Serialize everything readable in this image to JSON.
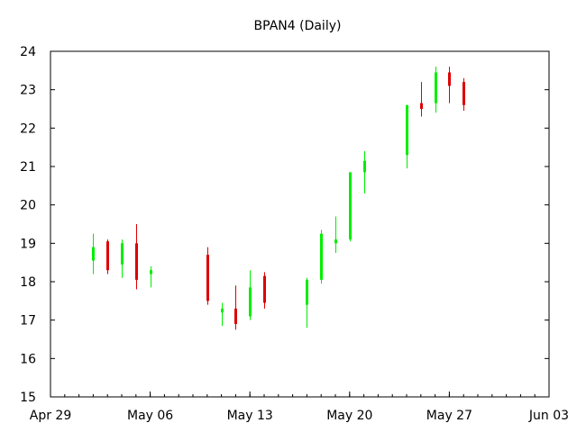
{
  "chart_data": {
    "type": "candlestick",
    "title": "BPAN4 (Daily)",
    "xlabel": "",
    "ylabel": "",
    "x_range": [
      "2019-04-29",
      "2019-06-03"
    ],
    "ylim": [
      15,
      24
    ],
    "y_ticks": [
      15,
      16,
      17,
      18,
      19,
      20,
      21,
      22,
      23,
      24
    ],
    "x_ticks": [
      {
        "date": "2019-04-29",
        "label": "Apr 29"
      },
      {
        "date": "2019-05-06",
        "label": "May 06"
      },
      {
        "date": "2019-05-13",
        "label": "May 13"
      },
      {
        "date": "2019-05-20",
        "label": "May 20"
      },
      {
        "date": "2019-05-27",
        "label": "May 27"
      },
      {
        "date": "2019-06-03",
        "label": "Jun 03"
      }
    ],
    "grid": false,
    "up_color": "#00ee00",
    "down_color": "#dd0000",
    "candles": [
      {
        "date": "2019-05-02",
        "open": 18.55,
        "high": 19.25,
        "low": 18.2,
        "close": 18.9
      },
      {
        "date": "2019-05-03",
        "open": 19.05,
        "high": 19.1,
        "low": 18.2,
        "close": 18.3
      },
      {
        "date": "2019-05-04",
        "open": 18.45,
        "high": 19.1,
        "low": 18.1,
        "close": 19.0
      },
      {
        "date": "2019-05-05",
        "open": 19.0,
        "high": 19.5,
        "low": 17.8,
        "close": 18.05
      },
      {
        "date": "2019-05-06",
        "open": 18.2,
        "high": 18.4,
        "low": 17.85,
        "close": 18.3
      },
      {
        "date": "2019-05-10",
        "open": 18.7,
        "high": 18.9,
        "low": 17.4,
        "close": 17.5
      },
      {
        "date": "2019-05-11",
        "open": 17.2,
        "high": 17.45,
        "low": 16.85,
        "close": 17.3
      },
      {
        "date": "2019-05-12",
        "open": 17.3,
        "high": 17.9,
        "low": 16.75,
        "close": 16.9
      },
      {
        "date": "2019-05-13",
        "open": 17.1,
        "high": 18.3,
        "low": 17.0,
        "close": 17.85
      },
      {
        "date": "2019-05-14",
        "open": 18.15,
        "high": 18.25,
        "low": 17.3,
        "close": 17.45
      },
      {
        "date": "2019-05-17",
        "open": 17.4,
        "high": 18.1,
        "low": 16.8,
        "close": 18.05
      },
      {
        "date": "2019-05-18",
        "open": 18.05,
        "high": 19.35,
        "low": 17.95,
        "close": 19.25
      },
      {
        "date": "2019-05-19",
        "open": 19.0,
        "high": 19.7,
        "low": 18.75,
        "close": 19.1
      },
      {
        "date": "2019-05-20",
        "open": 19.1,
        "high": 20.85,
        "low": 19.05,
        "close": 20.85
      },
      {
        "date": "2019-05-21",
        "open": 20.85,
        "high": 21.4,
        "low": 20.3,
        "close": 21.15
      },
      {
        "date": "2019-05-24",
        "open": 21.3,
        "high": 22.6,
        "low": 20.95,
        "close": 22.6
      },
      {
        "date": "2019-05-25",
        "open": 22.65,
        "high": 23.2,
        "low": 22.3,
        "close": 22.5
      },
      {
        "date": "2019-05-26",
        "open": 22.65,
        "high": 23.6,
        "low": 22.4,
        "close": 23.45
      },
      {
        "date": "2019-05-27",
        "open": 23.45,
        "high": 23.6,
        "low": 22.65,
        "close": 23.1
      },
      {
        "date": "2019-05-28",
        "open": 23.2,
        "high": 23.3,
        "low": 22.45,
        "close": 22.6
      }
    ]
  }
}
